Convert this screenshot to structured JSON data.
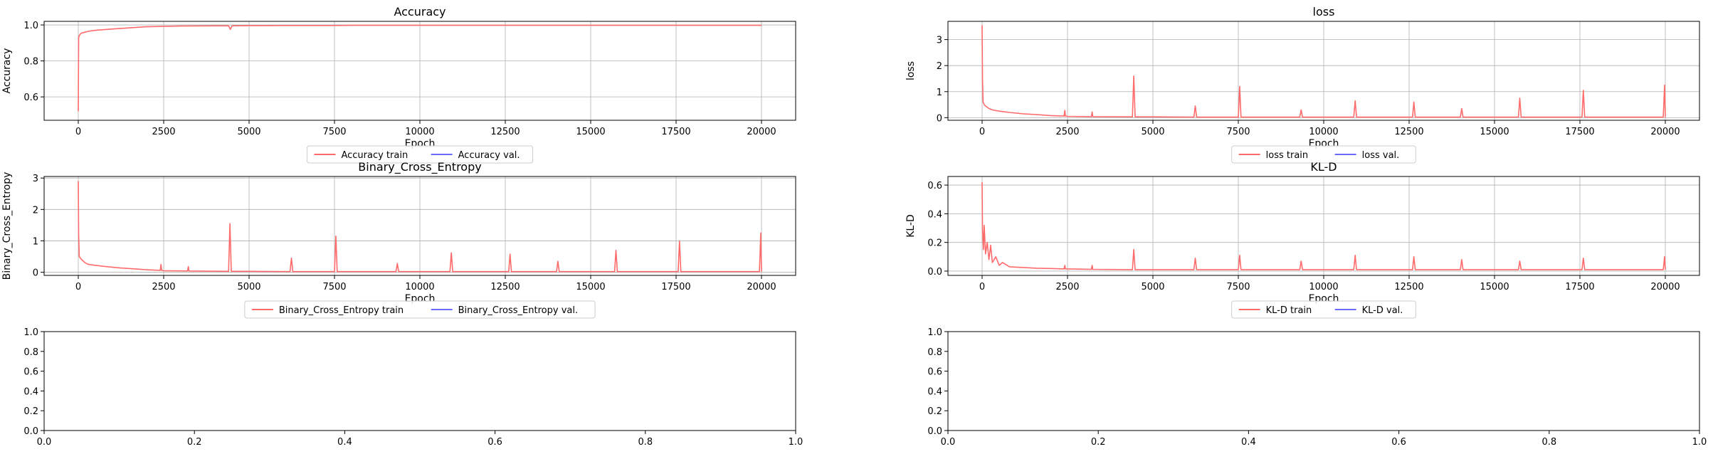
{
  "colors": {
    "train": "#ff6b6b",
    "val": "#6b6bff",
    "grid": "#b0b0b0"
  },
  "chart_data": [
    {
      "type": "line",
      "title": "Accuracy",
      "xlabel": "Epoch",
      "ylabel": "Accuracy",
      "xlim": [
        -1000,
        21000
      ],
      "ylim": [
        0.47,
        1.02
      ],
      "xticks": [
        0,
        2500,
        5000,
        7500,
        10000,
        12500,
        15000,
        17500,
        20000
      ],
      "xtick_labels": [
        "0",
        "2500",
        "5000",
        "7500",
        "10000",
        "12500",
        "15000",
        "17500",
        "20000"
      ],
      "yticks": [
        0.6,
        0.8,
        1.0
      ],
      "ytick_labels": [
        "0.6",
        "0.8",
        "1.0"
      ],
      "grid": true,
      "legend_position": "below-center",
      "series": [
        {
          "name": "Accuracy train",
          "color": "#ff6b6b",
          "x": [
            0,
            10,
            30,
            60,
            100,
            200,
            300,
            500,
            800,
            1200,
            1600,
            2000,
            2500,
            3000,
            4000,
            4400,
            4450,
            4500,
            5000,
            6000,
            7500,
            8000,
            10000,
            12500,
            15000,
            17500,
            20000
          ],
          "y": [
            0.52,
            0.93,
            0.94,
            0.95,
            0.955,
            0.96,
            0.965,
            0.97,
            0.975,
            0.98,
            0.985,
            0.99,
            0.992,
            0.994,
            0.995,
            0.995,
            0.975,
            0.995,
            0.996,
            0.997,
            0.997,
            0.998,
            0.998,
            0.998,
            0.998,
            0.998,
            0.998
          ]
        },
        {
          "name": "Accuracy val.",
          "color": "#6b6bff",
          "x": [],
          "y": []
        }
      ]
    },
    {
      "type": "line",
      "title": "loss",
      "xlabel": "Epoch",
      "ylabel": "loss",
      "xlim": [
        -1000,
        21000
      ],
      "ylim": [
        -0.1,
        3.7
      ],
      "xticks": [
        0,
        2500,
        5000,
        7500,
        10000,
        12500,
        15000,
        17500,
        20000
      ],
      "xtick_labels": [
        "0",
        "2500",
        "5000",
        "7500",
        "10000",
        "12500",
        "15000",
        "17500",
        "20000"
      ],
      "yticks": [
        0,
        1,
        2,
        3
      ],
      "ytick_labels": [
        "0",
        "1",
        "2",
        "3"
      ],
      "grid": true,
      "legend_position": "below-center",
      "series": [
        {
          "name": "loss train",
          "color": "#ff6b6b",
          "x": [
            0,
            10,
            30,
            60,
            100,
            200,
            300,
            500,
            800,
            1200,
            1600,
            2000,
            2400,
            2420,
            2440,
            2500,
            3200,
            3220,
            3240,
            4400,
            4440,
            4480,
            5000,
            6200,
            6240,
            6280,
            7500,
            7540,
            7580,
            9000,
            9300,
            9340,
            9380,
            10500,
            10880,
            10920,
            10960,
            12000,
            12600,
            12640,
            12680,
            14000,
            14040,
            14080,
            15000,
            15700,
            15740,
            15780,
            17000,
            17560,
            17600,
            17640,
            19000,
            19940,
            19980,
            20000
          ],
          "y": [
            3.55,
            1.5,
            0.6,
            0.5,
            0.45,
            0.35,
            0.3,
            0.25,
            0.2,
            0.15,
            0.12,
            0.08,
            0.06,
            0.28,
            0.06,
            0.05,
            0.04,
            0.22,
            0.04,
            0.03,
            1.6,
            0.03,
            0.03,
            0.02,
            0.45,
            0.02,
            0.02,
            1.2,
            0.02,
            0.02,
            0.02,
            0.3,
            0.02,
            0.02,
            0.02,
            0.65,
            0.02,
            0.02,
            0.02,
            0.6,
            0.02,
            0.02,
            0.35,
            0.02,
            0.02,
            0.02,
            0.75,
            0.02,
            0.02,
            0.02,
            1.05,
            0.02,
            0.02,
            0.02,
            1.25,
            0.02
          ]
        },
        {
          "name": "loss val.",
          "color": "#6b6bff",
          "x": [],
          "y": []
        }
      ]
    },
    {
      "type": "line",
      "title": "Binary_Cross_Entropy",
      "xlabel": "Epoch",
      "ylabel": "Binary_Cross_Entropy",
      "xlim": [
        -1000,
        21000
      ],
      "ylim": [
        -0.1,
        3.05
      ],
      "xticks": [
        0,
        2500,
        5000,
        7500,
        10000,
        12500,
        15000,
        17500,
        20000
      ],
      "xtick_labels": [
        "0",
        "2500",
        "5000",
        "7500",
        "10000",
        "12500",
        "15000",
        "17500",
        "20000"
      ],
      "yticks": [
        0,
        1,
        2,
        3
      ],
      "ytick_labels": [
        "0",
        "1",
        "2",
        "3"
      ],
      "grid": true,
      "legend_position": "below-center",
      "series": [
        {
          "name": "Binary_Cross_Entropy train",
          "color": "#ff6b6b",
          "x": [
            0,
            10,
            30,
            60,
            100,
            200,
            300,
            500,
            800,
            1200,
            1600,
            2000,
            2400,
            2420,
            2440,
            2500,
            3200,
            3220,
            3240,
            4400,
            4440,
            4480,
            5000,
            6200,
            6240,
            6280,
            7500,
            7540,
            7580,
            9000,
            9300,
            9340,
            9380,
            10500,
            10880,
            10920,
            10960,
            12000,
            12600,
            12640,
            12680,
            14000,
            14040,
            14080,
            15000,
            15700,
            15740,
            15780,
            17000,
            17560,
            17600,
            17640,
            19000,
            19940,
            19980,
            20000
          ],
          "y": [
            2.9,
            1.2,
            0.5,
            0.45,
            0.4,
            0.3,
            0.25,
            0.22,
            0.18,
            0.14,
            0.11,
            0.08,
            0.06,
            0.25,
            0.06,
            0.05,
            0.04,
            0.18,
            0.04,
            0.03,
            1.55,
            0.03,
            0.03,
            0.02,
            0.45,
            0.02,
            0.02,
            1.15,
            0.02,
            0.02,
            0.02,
            0.28,
            0.02,
            0.02,
            0.02,
            0.62,
            0.02,
            0.02,
            0.02,
            0.58,
            0.02,
            0.02,
            0.35,
            0.02,
            0.02,
            0.02,
            0.7,
            0.02,
            0.02,
            0.02,
            1.0,
            0.02,
            0.02,
            0.02,
            1.25,
            0.02
          ]
        },
        {
          "name": "Binary_Cross_Entropy val.",
          "color": "#6b6bff",
          "x": [],
          "y": []
        }
      ]
    },
    {
      "type": "line",
      "title": "KL-D",
      "xlabel": "Epoch",
      "ylabel": "KL-D",
      "xlim": [
        -1000,
        21000
      ],
      "ylim": [
        -0.03,
        0.66
      ],
      "xticks": [
        0,
        2500,
        5000,
        7500,
        10000,
        12500,
        15000,
        17500,
        20000
      ],
      "xtick_labels": [
        "0",
        "2500",
        "5000",
        "7500",
        "10000",
        "12500",
        "15000",
        "17500",
        "20000"
      ],
      "yticks": [
        0.0,
        0.2,
        0.4,
        0.6
      ],
      "ytick_labels": [
        "0.0",
        "0.2",
        "0.4",
        "0.6"
      ],
      "grid": true,
      "legend_position": "below-center",
      "series": [
        {
          "name": "KL-D train",
          "color": "#ff6b6b",
          "x": [
            0,
            10,
            40,
            60,
            100,
            150,
            200,
            250,
            300,
            400,
            500,
            600,
            800,
            1200,
            1600,
            2000,
            2400,
            2420,
            2440,
            2500,
            3200,
            3220,
            3240,
            4400,
            4440,
            4480,
            5000,
            6200,
            6240,
            6280,
            7500,
            7540,
            7580,
            9000,
            9300,
            9340,
            9380,
            10500,
            10880,
            10920,
            10960,
            12000,
            12600,
            12640,
            12680,
            14000,
            14040,
            14080,
            15000,
            15700,
            15740,
            15780,
            17000,
            17560,
            17600,
            17640,
            19000,
            19940,
            19980,
            20000
          ],
          "y": [
            0.62,
            0.3,
            0.15,
            0.32,
            0.12,
            0.2,
            0.08,
            0.18,
            0.06,
            0.1,
            0.04,
            0.06,
            0.03,
            0.025,
            0.02,
            0.018,
            0.015,
            0.04,
            0.015,
            0.015,
            0.012,
            0.04,
            0.012,
            0.01,
            0.15,
            0.01,
            0.01,
            0.01,
            0.09,
            0.01,
            0.01,
            0.11,
            0.01,
            0.01,
            0.01,
            0.07,
            0.01,
            0.01,
            0.01,
            0.11,
            0.01,
            0.01,
            0.01,
            0.1,
            0.01,
            0.01,
            0.08,
            0.01,
            0.01,
            0.01,
            0.07,
            0.01,
            0.01,
            0.01,
            0.09,
            0.01,
            0.01,
            0.01,
            0.1,
            0.01
          ]
        },
        {
          "name": "KL-D val.",
          "color": "#6b6bff",
          "x": [],
          "y": []
        }
      ]
    },
    {
      "type": "line",
      "title": "",
      "xlabel": "",
      "ylabel": "",
      "xlim": [
        0,
        1
      ],
      "ylim": [
        0,
        1
      ],
      "xticks": [
        0,
        0.2,
        0.4,
        0.6,
        0.8,
        1.0
      ],
      "xtick_labels": [
        "0.0",
        "0.2",
        "0.4",
        "0.6",
        "0.8",
        "1.0"
      ],
      "yticks": [
        0,
        0.2,
        0.4,
        0.6,
        0.8,
        1.0
      ],
      "ytick_labels": [
        "0.0",
        "0.2",
        "0.4",
        "0.6",
        "0.8",
        "1.0"
      ],
      "grid": false,
      "series": []
    },
    {
      "type": "line",
      "title": "",
      "xlabel": "",
      "ylabel": "",
      "xlim": [
        0,
        1
      ],
      "ylim": [
        0,
        1
      ],
      "xticks": [
        0,
        0.2,
        0.4,
        0.6,
        0.8,
        1.0
      ],
      "xtick_labels": [
        "0.0",
        "0.2",
        "0.4",
        "0.6",
        "0.8",
        "1.0"
      ],
      "yticks": [
        0,
        0.2,
        0.4,
        0.6,
        0.8,
        1.0
      ],
      "ytick_labels": [
        "0.0",
        "0.2",
        "0.4",
        "0.6",
        "0.8",
        "1.0"
      ],
      "grid": false,
      "series": []
    }
  ]
}
